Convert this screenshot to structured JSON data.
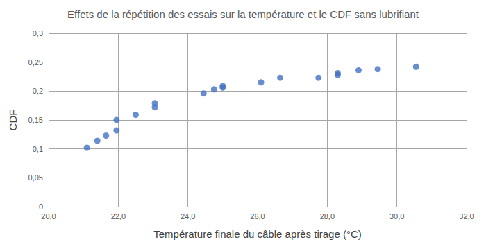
{
  "chart_data": {
    "type": "scatter",
    "title": "Effets de la répétition des essais sur la température et le CDF sans lubrifiant",
    "x_label": "Température finale du câble après tirage (°C)",
    "y_label": "CDF",
    "x": [
      21.1,
      21.4,
      21.65,
      21.95,
      21.95,
      22.5,
      23.05,
      23.05,
      24.45,
      24.75,
      25.0,
      25.0,
      26.1,
      26.65,
      27.75,
      28.3,
      28.3,
      28.9,
      29.45,
      30.55
    ],
    "values": [
      0.102,
      0.114,
      0.123,
      0.132,
      0.15,
      0.159,
      0.172,
      0.179,
      0.196,
      0.203,
      0.206,
      0.209,
      0.215,
      0.223,
      0.223,
      0.228,
      0.231,
      0.236,
      0.238,
      0.242
    ],
    "color": "#4472c4",
    "marker": "circle",
    "xlim": [
      20,
      32
    ],
    "xticks": [
      {
        "value": 20,
        "label": "20,0"
      },
      {
        "value": 22,
        "label": "22,0"
      },
      {
        "value": 24,
        "label": "24,0"
      },
      {
        "value": 26,
        "label": "26,0"
      },
      {
        "value": 28,
        "label": "28,0"
      },
      {
        "value": 30,
        "label": "30,0"
      },
      {
        "value": 32,
        "label": "32,0"
      }
    ],
    "ylim": [
      0,
      0.3
    ],
    "yticks": [
      0,
      {
        "value": 0.05,
        "label": "0,05"
      },
      {
        "value": 0.1,
        "label": "0,1"
      },
      {
        "value": 0.15,
        "label": "0,15"
      },
      {
        "value": 0.2,
        "label": "0,2"
      },
      {
        "value": 0.25,
        "label": "0,25"
      },
      {
        "value": 0.3,
        "label": "0,3"
      }
    ],
    "grid": true
  }
}
